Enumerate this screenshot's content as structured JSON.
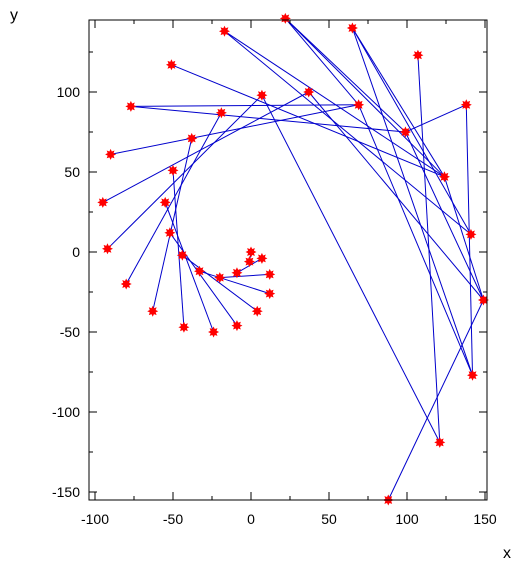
{
  "chart_data": {
    "type": "scatter",
    "title": "",
    "xlabel": "x",
    "ylabel": "y",
    "xlim": [
      -100,
      150
    ],
    "ylim": [
      -155,
      145
    ],
    "grid": false,
    "x_ticks": [
      -100,
      -50,
      0,
      50,
      100,
      150
    ],
    "y_ticks": [
      -150,
      -100,
      -50,
      0,
      50,
      100
    ],
    "x_tick_labels": [
      "-100",
      "-50",
      "0",
      "50",
      "100",
      "150"
    ],
    "y_tick_labels": [
      "-150",
      "-100",
      "-50",
      "0",
      "50",
      "100"
    ],
    "colors": {
      "marker": "#ff0000",
      "line": "#0000cc",
      "axes": "#000000"
    },
    "series": [
      {
        "markers": "star",
        "points": [
          [
            0,
            0
          ],
          [
            7,
            -4
          ],
          [
            12,
            -14
          ],
          [
            12,
            -26
          ],
          [
            4,
            -37
          ],
          [
            -9,
            -46
          ],
          [
            -24,
            -50
          ],
          [
            -43,
            -47
          ],
          [
            -63,
            -37
          ],
          [
            -80,
            -20
          ],
          [
            -92,
            2
          ],
          [
            -95,
            31
          ],
          [
            -90,
            61
          ],
          [
            -77,
            91
          ],
          [
            -51,
            117
          ],
          [
            -17,
            138
          ],
          [
            22,
            146
          ],
          [
            65,
            140
          ],
          [
            107,
            123
          ],
          [
            138,
            92
          ],
          [
            149,
            -30
          ],
          [
            142,
            -77
          ],
          [
            121,
            -119
          ],
          [
            88,
            -155
          ],
          [
            -1,
            -6
          ],
          [
            -9,
            -13
          ],
          [
            -20,
            -16
          ],
          [
            -33,
            -12
          ],
          [
            -44,
            -2
          ],
          [
            -52,
            12
          ],
          [
            -55,
            31
          ],
          [
            -50,
            51
          ],
          [
            -38,
            71
          ],
          [
            -19,
            87
          ],
          [
            7,
            98
          ],
          [
            37,
            100
          ],
          [
            69,
            92
          ],
          [
            99,
            75
          ],
          [
            124,
            47
          ],
          [
            141,
            11
          ]
        ],
        "line_pairs": [
          [
            0,
            24
          ],
          [
            1,
            25
          ],
          [
            2,
            26
          ],
          [
            3,
            27
          ],
          [
            4,
            28
          ],
          [
            5,
            29
          ],
          [
            6,
            30
          ],
          [
            7,
            31
          ],
          [
            8,
            32
          ],
          [
            9,
            33
          ],
          [
            10,
            34
          ],
          [
            11,
            35
          ],
          [
            12,
            36
          ],
          [
            13,
            37
          ],
          [
            14,
            38
          ],
          [
            15,
            39
          ],
          [
            16,
            36
          ],
          [
            16,
            37
          ],
          [
            17,
            38
          ],
          [
            17,
            39
          ],
          [
            18,
            22
          ],
          [
            19,
            21
          ],
          [
            20,
            23
          ],
          [
            13,
            36
          ],
          [
            15,
            38
          ],
          [
            16,
            38
          ],
          [
            17,
            21
          ],
          [
            34,
            22
          ],
          [
            35,
            20
          ],
          [
            36,
            21
          ],
          [
            37,
            19
          ],
          [
            37,
            20
          ],
          [
            38,
            20
          ]
        ]
      }
    ]
  }
}
